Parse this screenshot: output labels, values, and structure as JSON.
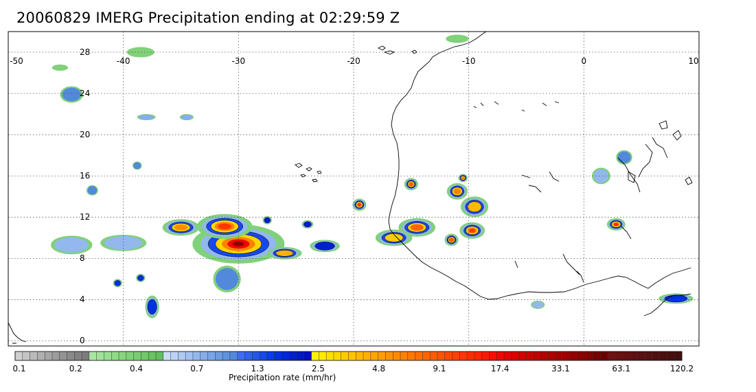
{
  "title": "20060829 IMERG Precipitation ending at 02:29:59 Z",
  "map": {
    "lon_range": [
      -50,
      10
    ],
    "lat_range": [
      -0.5,
      30
    ],
    "lon_ticks": [
      "-50",
      "-40",
      "-30",
      "-20",
      "-10",
      "0",
      "10"
    ],
    "lat_ticks": [
      "0",
      "4",
      "8",
      "12",
      "16",
      "20",
      "24",
      "28"
    ],
    "grid": "dotted"
  },
  "colorbar": {
    "title": "Precipitation rate (mm/hr)",
    "tick_labels": [
      "0.1",
      "0.2",
      "0.4",
      "0.7",
      "1.3",
      "2.5",
      "4.8",
      "9.1",
      "17.4",
      "33.1",
      "63.1",
      "120.2"
    ],
    "groups": [
      {
        "name": "gray",
        "colors": [
          "#cfcfcf",
          "#c4c4c4",
          "#bababa",
          "#b0b0b0",
          "#a6a6a6",
          "#9c9c9c",
          "#939393",
          "#8a8a8a",
          "#828282",
          "#7c7c7c"
        ]
      },
      {
        "name": "green",
        "colors": [
          "#a9e6a3",
          "#a1e29a",
          "#98de92",
          "#90da89",
          "#88d581",
          "#80d179",
          "#78cc71",
          "#70c869",
          "#68c362",
          "#60bf5a"
        ]
      },
      {
        "name": "lightblue",
        "colors": [
          "#c9dcf8",
          "#bcd3f6",
          "#afcaf3",
          "#a1c1f1",
          "#93b8ee",
          "#86aeea",
          "#79a5e7",
          "#6c9ce3",
          "#5f92df",
          "#5289db"
        ]
      },
      {
        "name": "blue",
        "colors": [
          "#3d6cf0",
          "#3060ee",
          "#2454eb",
          "#1848e8",
          "#0c3ce4",
          "#0030e0",
          "#0028d8",
          "#0020cf",
          "#0018c6",
          "#0010bd"
        ]
      },
      {
        "name": "yellow",
        "colors": [
          "#fff200",
          "#ffe900",
          "#ffdf00",
          "#ffd600",
          "#ffcc00",
          "#ffc300",
          "#ffb900",
          "#ffb000",
          "#ffa600",
          "#ff9d00"
        ]
      },
      {
        "name": "orange",
        "colors": [
          "#ff9400",
          "#ff8a00",
          "#ff8100",
          "#ff7800",
          "#ff6f00",
          "#ff6500",
          "#ff5c00",
          "#ff5300",
          "#ff4900",
          "#ff4000"
        ]
      },
      {
        "name": "red",
        "colors": [
          "#ff3600",
          "#ff2d00",
          "#ff2400",
          "#fc1a00",
          "#f61100",
          "#ee0800",
          "#e50000",
          "#dc0000",
          "#d20000",
          "#c90000"
        ]
      },
      {
        "name": "darkred",
        "colors": [
          "#c00000",
          "#b70000",
          "#ae0000",
          "#a50000",
          "#9c0000",
          "#930000",
          "#8a0000",
          "#800000",
          "#760000",
          "#6c0000"
        ]
      },
      {
        "name": "maroon",
        "colors": [
          "#701010",
          "#6a1010",
          "#651010",
          "#601010",
          "#5b1010",
          "#561010",
          "#511010",
          "#4c1010",
          "#471010",
          "#421010"
        ]
      }
    ]
  },
  "precip_cells": [
    {
      "lon": -30.0,
      "lat": 9.4,
      "rx": 4.0,
      "ry": 1.9,
      "peak": "#8b0000"
    },
    {
      "lon": -31.2,
      "lat": 11.1,
      "rx": 2.4,
      "ry": 1.2,
      "peak": "#ff3600"
    },
    {
      "lon": -35.0,
      "lat": 11.0,
      "rx": 1.6,
      "ry": 0.8,
      "peak": "#ff8a00"
    },
    {
      "lon": -31.0,
      "lat": 6.0,
      "rx": 1.2,
      "ry": 1.3,
      "peak": "#5289db"
    },
    {
      "lon": -40.0,
      "lat": 9.5,
      "rx": 2.0,
      "ry": 0.8,
      "peak": "#93b8ee"
    },
    {
      "lon": -44.5,
      "lat": 9.3,
      "rx": 1.8,
      "ry": 0.9,
      "peak": "#93b8ee"
    },
    {
      "lon": -26.0,
      "lat": 8.5,
      "rx": 1.5,
      "ry": 0.6,
      "peak": "#ffb000"
    },
    {
      "lon": -22.5,
      "lat": 9.2,
      "rx": 1.3,
      "ry": 0.6,
      "peak": "#0020cf"
    },
    {
      "lon": -19.5,
      "lat": 13.2,
      "rx": 0.6,
      "ry": 0.6,
      "peak": "#ff2d00"
    },
    {
      "lon": -15.0,
      "lat": 15.2,
      "rx": 0.6,
      "ry": 0.6,
      "peak": "#ff6500"
    },
    {
      "lon": -14.5,
      "lat": 11.0,
      "rx": 1.6,
      "ry": 0.9,
      "peak": "#ff6500"
    },
    {
      "lon": -16.5,
      "lat": 10.0,
      "rx": 1.6,
      "ry": 0.8,
      "peak": "#ffcc00"
    },
    {
      "lon": -9.7,
      "lat": 10.7,
      "rx": 1.1,
      "ry": 0.8,
      "peak": "#ff3600"
    },
    {
      "lon": -9.5,
      "lat": 13.0,
      "rx": 1.2,
      "ry": 1.0,
      "peak": "#ffb900"
    },
    {
      "lon": -11.0,
      "lat": 14.5,
      "rx": 0.9,
      "ry": 0.8,
      "peak": "#ff8100"
    },
    {
      "lon": -11.5,
      "lat": 9.8,
      "rx": 0.6,
      "ry": 0.6,
      "peak": "#ff5c00"
    },
    {
      "lon": -10.5,
      "lat": 15.8,
      "rx": 0.4,
      "ry": 0.4,
      "peak": "#ff8a00"
    },
    {
      "lon": 2.8,
      "lat": 11.3,
      "rx": 0.8,
      "ry": 0.6,
      "peak": "#ff2d00"
    },
    {
      "lon": 1.5,
      "lat": 16.0,
      "rx": 0.8,
      "ry": 0.8,
      "peak": "#93b8ee"
    },
    {
      "lon": 3.5,
      "lat": 17.8,
      "rx": 0.7,
      "ry": 0.7,
      "peak": "#5289db"
    },
    {
      "lon": 8.0,
      "lat": 4.1,
      "rx": 1.5,
      "ry": 0.5,
      "peak": "#0030e0"
    },
    {
      "lon": -37.5,
      "lat": 3.3,
      "rx": 0.6,
      "ry": 1.1,
      "peak": "#0030e0"
    },
    {
      "lon": -44.5,
      "lat": 23.9,
      "rx": 1.0,
      "ry": 0.8,
      "peak": "#5289db"
    },
    {
      "lon": -38.0,
      "lat": 21.7,
      "rx": 0.8,
      "ry": 0.3,
      "peak": "#86aeea"
    },
    {
      "lon": -34.5,
      "lat": 21.7,
      "rx": 0.6,
      "ry": 0.3,
      "peak": "#86aeea"
    },
    {
      "lon": -38.8,
      "lat": 17.0,
      "rx": 0.4,
      "ry": 0.4,
      "peak": "#5289db"
    },
    {
      "lon": -42.7,
      "lat": 14.6,
      "rx": 0.5,
      "ry": 0.5,
      "peak": "#5289db"
    },
    {
      "lon": -27.5,
      "lat": 11.7,
      "rx": 0.4,
      "ry": 0.4,
      "peak": "#0020cf"
    },
    {
      "lon": -24.0,
      "lat": 11.3,
      "rx": 0.5,
      "ry": 0.4,
      "peak": "#0020cf"
    },
    {
      "lon": -40.5,
      "lat": 5.6,
      "rx": 0.4,
      "ry": 0.4,
      "peak": "#0030e0"
    },
    {
      "lon": -38.5,
      "lat": 6.1,
      "rx": 0.4,
      "ry": 0.4,
      "peak": "#0030e0"
    },
    {
      "lon": -4.0,
      "lat": 3.5,
      "rx": 0.6,
      "ry": 0.4,
      "peak": "#93b8ee"
    },
    {
      "lon": -45.5,
      "lat": 26.5,
      "rx": 0.7,
      "ry": 0.3,
      "peak": "#80d179"
    },
    {
      "lon": -38.5,
      "lat": 28.0,
      "rx": 1.2,
      "ry": 0.5,
      "peak": "#80d179"
    },
    {
      "lon": -11.0,
      "lat": 29.3,
      "rx": 1.0,
      "ry": 0.4,
      "peak": "#80d179"
    }
  ]
}
